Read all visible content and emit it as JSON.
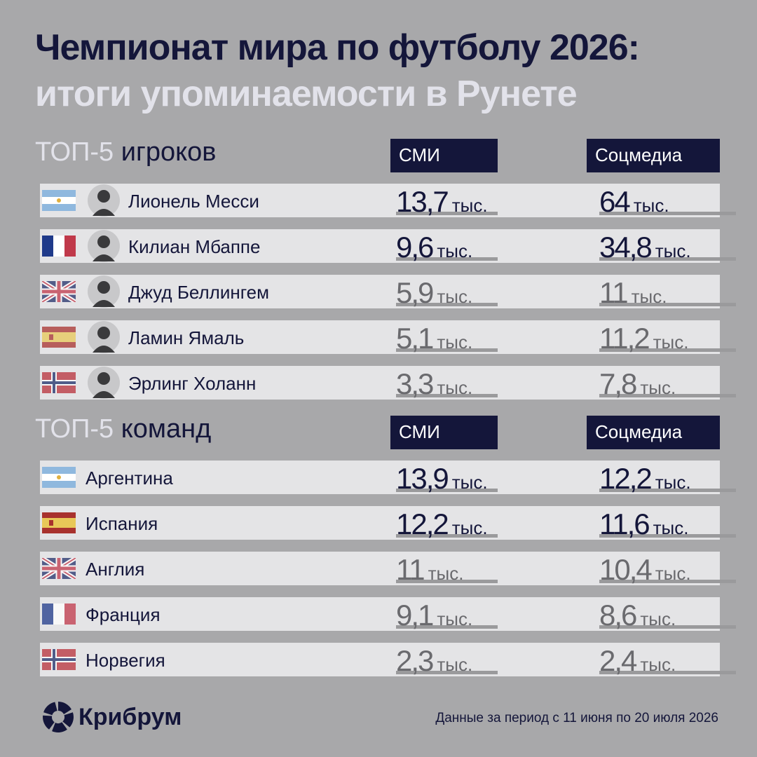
{
  "header": {
    "title": "Чемпионат мира по футболу 2026:",
    "subtitle": "итоги упоминаемости в Рунете"
  },
  "sections": [
    {
      "prefix": "ТОП-5",
      "label": "игроков",
      "columns": [
        "СМИ",
        "Соцмедиа"
      ],
      "rows": [
        {
          "name": "Лионель Месси",
          "media": {
            "value": "13,7",
            "unit": "тыс."
          },
          "social": {
            "value": "64",
            "unit": "тыс."
          }
        },
        {
          "name": "Килиан Мбаппе",
          "media": {
            "value": "9,6",
            "unit": "тыс."
          },
          "social": {
            "value": "34,8",
            "unit": "тыс."
          }
        },
        {
          "name": "Джуд Беллингем",
          "media": {
            "value": "5,9",
            "unit": "тыс."
          },
          "social": {
            "value": "11",
            "unit": "тыс."
          }
        },
        {
          "name": "Ламин Ямаль",
          "media": {
            "value": "5,1",
            "unit": "тыс."
          },
          "social": {
            "value": "11,2",
            "unit": "тыс."
          }
        },
        {
          "name": "Эрлинг Холанн",
          "media": {
            "value": "3,3",
            "unit": "тыс."
          },
          "social": {
            "value": "7,8",
            "unit": "тыс."
          }
        }
      ]
    },
    {
      "prefix": "ТОП-5",
      "label": "команд",
      "columns": [
        "СМИ",
        "Соцмедиа"
      ],
      "rows": [
        {
          "name": "Аргентина",
          "media": {
            "value": "13,9",
            "unit": "тыс."
          },
          "social": {
            "value": "12,2",
            "unit": "тыс."
          }
        },
        {
          "name": "Испания",
          "media": {
            "value": "12,2",
            "unit": "тыс."
          },
          "social": {
            "value": "11,6",
            "unit": "тыс."
          }
        },
        {
          "name": "Англия",
          "media": {
            "value": "11",
            "unit": "тыс."
          },
          "social": {
            "value": "10,4",
            "unit": "тыс."
          }
        },
        {
          "name": "Франция",
          "media": {
            "value": "9,1",
            "unit": "тыс."
          },
          "social": {
            "value": "8,6",
            "unit": "тыс."
          }
        },
        {
          "name": "Норвегия",
          "media": {
            "value": "2,3",
            "unit": "тыс."
          },
          "social": {
            "value": "2,4",
            "unit": "тыс."
          }
        }
      ]
    }
  ],
  "footer": {
    "brand": "Крибрум",
    "note": "Данные за период с 11 июня по 20 июля 2026"
  }
}
